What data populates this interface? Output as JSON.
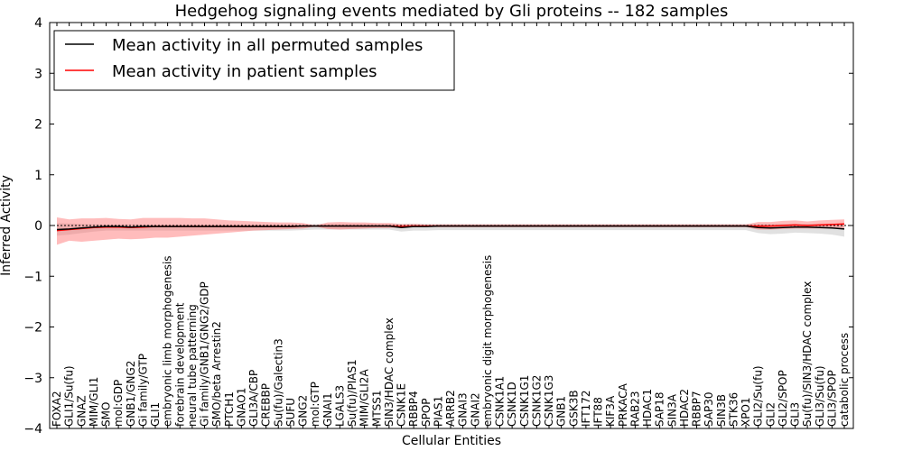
{
  "chart_data": {
    "type": "line",
    "title": "Hedgehog signaling events mediated by Gli proteins -- 182 samples",
    "xlabel": "Cellular Entities",
    "ylabel": "Inferred Activity",
    "ylim": [
      -4,
      4
    ],
    "yticks": [
      -4,
      -3,
      -2,
      -1,
      0,
      1,
      2,
      3,
      4
    ],
    "ytick_labels": [
      "−4",
      "−3",
      "−2",
      "−1",
      "0",
      "1",
      "2",
      "3",
      "4"
    ],
    "grid": false,
    "legend_position": "top-left",
    "categories": [
      "FOXA2",
      "GLI1/Su(fu)",
      "GNAZ",
      "MIM/GLI1",
      "SMO",
      "mol:GDP",
      "GNB1/GNG2",
      "Gi family/GTP",
      "GLI1",
      "embryonic limb morphogenesis",
      "forebrain development",
      "neural tube patterning",
      "Gi family/GNB1/GNG2/GDP",
      "SMO/beta Arrestin2",
      "PTCH1",
      "GNAO1",
      "GLI3A/CBP",
      "CREBBP",
      "Su(fu)/Galectin3",
      "SUFU",
      "GNG2",
      "mol:GTP",
      "GNAI1",
      "LGALS3",
      "Su(fu)/PIAS1",
      "MIM/GLI2A",
      "MTSS1",
      "SIN3/HDAC complex",
      "CSNK1E",
      "RBBP4",
      "SPOP",
      "PIAS1",
      "ARRB2",
      "GNAI3",
      "GNAI2",
      "embryonic digit morphogenesis",
      "CSNK1A1",
      "CSNK1D",
      "CSNK1G1",
      "CSNK1G2",
      "CSNK1G3",
      "GNB1",
      "GSK3B",
      "IFT172",
      "IFT88",
      "KIF3A",
      "PRKACA",
      "RAB23",
      "HDAC1",
      "SAP18",
      "SIN3A",
      "HDAC2",
      "RBBP7",
      "SAP30",
      "SIN3B",
      "STK36",
      "XPO1",
      "GLI2/Su(fu)",
      "GLI2",
      "GLI2/SPOP",
      "GLI3",
      "Su(fu)/SIN3/HDAC complex",
      "GLI3/Su(fu)",
      "GLI3/SPOP",
      "catabolic process"
    ],
    "series": [
      {
        "name": "Mean activity in all permuted samples",
        "color": "#000000",
        "values": [
          -0.08,
          -0.07,
          -0.05,
          -0.03,
          -0.02,
          -0.02,
          -0.03,
          -0.02,
          -0.02,
          -0.02,
          -0.02,
          -0.02,
          -0.02,
          -0.02,
          -0.02,
          -0.02,
          -0.02,
          -0.02,
          -0.02,
          -0.02,
          -0.01,
          -0.01,
          -0.01,
          -0.01,
          -0.01,
          -0.01,
          -0.01,
          -0.01,
          -0.04,
          -0.02,
          -0.02,
          -0.01,
          -0.01,
          -0.01,
          -0.01,
          -0.01,
          -0.01,
          -0.01,
          -0.01,
          -0.01,
          -0.01,
          -0.01,
          -0.01,
          -0.01,
          -0.01,
          -0.01,
          -0.01,
          -0.01,
          -0.01,
          -0.01,
          -0.01,
          -0.01,
          -0.01,
          -0.01,
          -0.01,
          -0.01,
          -0.01,
          -0.04,
          -0.05,
          -0.04,
          -0.03,
          -0.03,
          -0.04,
          -0.05,
          -0.07
        ],
        "band_upper": [
          0.05,
          0.04,
          0.03,
          0.02,
          0.02,
          0.02,
          0.02,
          0.02,
          0.02,
          0.02,
          0.02,
          0.02,
          0.02,
          0.02,
          0.02,
          0.02,
          0.02,
          0.02,
          0.02,
          0.02,
          0.02,
          0.03,
          0.03,
          0.03,
          0.03,
          0.03,
          0.03,
          0.03,
          0.02,
          0.03,
          0.03,
          0.03,
          0.03,
          0.03,
          0.03,
          0.03,
          0.03,
          0.03,
          0.03,
          0.03,
          0.03,
          0.03,
          0.03,
          0.03,
          0.03,
          0.03,
          0.03,
          0.03,
          0.03,
          0.03,
          0.03,
          0.03,
          0.03,
          0.03,
          0.03,
          0.03,
          0.03,
          0.03,
          0.03,
          0.03,
          0.03,
          0.03,
          0.03,
          0.03,
          0.03
        ],
        "band_lower": [
          -0.2,
          -0.18,
          -0.15,
          -0.12,
          -0.1,
          -0.1,
          -0.1,
          -0.1,
          -0.1,
          -0.1,
          -0.1,
          -0.1,
          -0.1,
          -0.1,
          -0.1,
          -0.1,
          -0.1,
          -0.1,
          -0.1,
          -0.1,
          -0.09,
          -0.08,
          -0.08,
          -0.08,
          -0.08,
          -0.08,
          -0.08,
          -0.08,
          -0.12,
          -0.1,
          -0.1,
          -0.09,
          -0.09,
          -0.09,
          -0.09,
          -0.09,
          -0.09,
          -0.09,
          -0.09,
          -0.09,
          -0.09,
          -0.09,
          -0.09,
          -0.09,
          -0.09,
          -0.09,
          -0.09,
          -0.09,
          -0.09,
          -0.09,
          -0.09,
          -0.09,
          -0.09,
          -0.09,
          -0.09,
          -0.09,
          -0.09,
          -0.15,
          -0.17,
          -0.16,
          -0.14,
          -0.15,
          -0.16,
          -0.18,
          -0.22
        ]
      },
      {
        "name": "Mean activity in patient samples",
        "color": "#ff0000",
        "values": [
          -0.1,
          -0.08,
          -0.06,
          -0.04,
          -0.03,
          -0.03,
          -0.04,
          -0.03,
          -0.02,
          -0.02,
          -0.02,
          -0.02,
          -0.02,
          -0.02,
          -0.02,
          -0.02,
          -0.02,
          -0.02,
          -0.02,
          -0.02,
          -0.01,
          -0.01,
          -0.01,
          -0.01,
          -0.01,
          -0.01,
          -0.01,
          -0.01,
          -0.02,
          -0.01,
          -0.01,
          -0.01,
          -0.01,
          -0.01,
          -0.01,
          -0.01,
          -0.01,
          -0.01,
          -0.01,
          -0.01,
          -0.01,
          -0.01,
          -0.01,
          -0.01,
          -0.01,
          -0.01,
          -0.01,
          -0.01,
          -0.01,
          -0.01,
          -0.01,
          -0.01,
          -0.01,
          -0.01,
          -0.01,
          -0.01,
          -0.01,
          -0.01,
          -0.01,
          0.0,
          0.01,
          0.0,
          0.01,
          0.02,
          0.03
        ],
        "band_upper": [
          0.16,
          0.12,
          0.14,
          0.14,
          0.15,
          0.13,
          0.12,
          0.15,
          0.15,
          0.15,
          0.15,
          0.14,
          0.14,
          0.12,
          0.1,
          0.09,
          0.08,
          0.07,
          0.06,
          0.06,
          0.05,
          0.0,
          0.06,
          0.07,
          0.06,
          0.06,
          0.05,
          0.05,
          0.03,
          0.03,
          0.02,
          0.02,
          0.02,
          0.02,
          0.02,
          0.02,
          0.02,
          0.02,
          0.02,
          0.02,
          0.02,
          0.02,
          0.02,
          0.02,
          0.02,
          0.02,
          0.02,
          0.02,
          0.02,
          0.02,
          0.02,
          0.02,
          0.02,
          0.02,
          0.02,
          0.02,
          0.02,
          0.07,
          0.07,
          0.09,
          0.1,
          0.08,
          0.1,
          0.11,
          0.12
        ],
        "band_lower": [
          -0.38,
          -0.3,
          -0.32,
          -0.3,
          -0.28,
          -0.26,
          -0.27,
          -0.26,
          -0.24,
          -0.24,
          -0.22,
          -0.2,
          -0.18,
          -0.16,
          -0.14,
          -0.12,
          -0.1,
          -0.09,
          -0.08,
          -0.07,
          -0.06,
          -0.02,
          -0.07,
          -0.08,
          -0.07,
          -0.06,
          -0.05,
          -0.05,
          -0.04,
          -0.03,
          -0.03,
          -0.03,
          -0.03,
          -0.03,
          -0.03,
          -0.03,
          -0.03,
          -0.03,
          -0.03,
          -0.03,
          -0.03,
          -0.03,
          -0.03,
          -0.03,
          -0.03,
          -0.03,
          -0.03,
          -0.03,
          -0.03,
          -0.03,
          -0.03,
          -0.03,
          -0.03,
          -0.03,
          -0.03,
          -0.03,
          -0.03,
          -0.08,
          -0.08,
          -0.07,
          -0.06,
          -0.06,
          -0.06,
          -0.06,
          -0.05
        ]
      }
    ]
  }
}
